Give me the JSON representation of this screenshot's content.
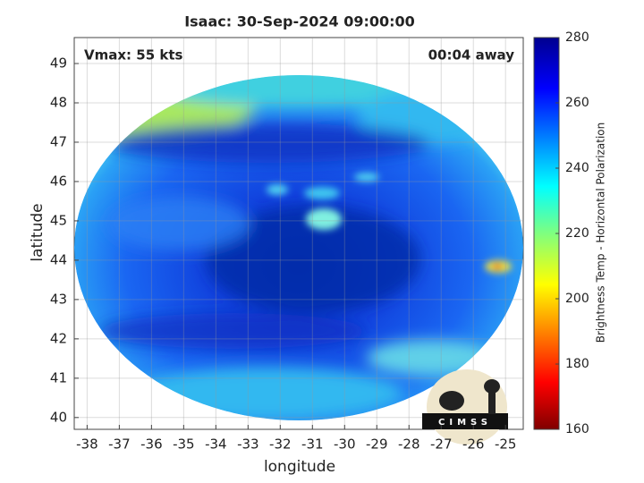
{
  "chart_data": {
    "type": "image",
    "title": "Isaac: 30-Sep-2024 09:00:00",
    "annotations": {
      "left": "Vmax: 55 kts",
      "right": "00:04 away"
    },
    "x_label": "longitude",
    "y_label": "latitude",
    "xlim": [
      -38.4,
      -24.45
    ],
    "ylim": [
      39.7,
      49.66
    ],
    "xticks": [
      -38,
      -37,
      -36,
      -35,
      -34,
      -33,
      -32,
      -31,
      -30,
      -29,
      -28,
      -27,
      -26,
      -25
    ],
    "yticks": [
      40,
      41,
      42,
      43,
      44,
      45,
      46,
      47,
      48,
      49
    ],
    "grid": true,
    "colorbar": {
      "label": "Brightness Temp - Horizontal Polarization",
      "lim": [
        160,
        280
      ],
      "ticks": [
        160,
        180,
        200,
        220,
        240,
        260,
        280
      ]
    },
    "logo": "CIMSS"
  }
}
